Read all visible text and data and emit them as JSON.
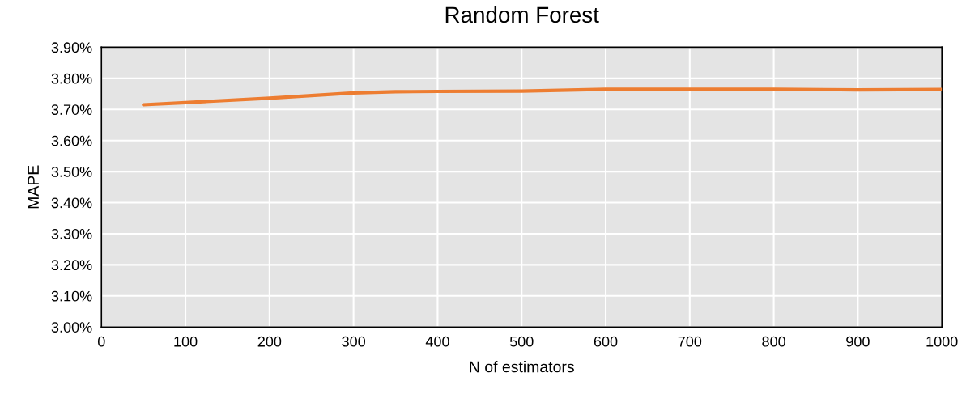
{
  "chart_data": {
    "type": "line",
    "title": "Random Forest",
    "xlabel": "N of estimators",
    "ylabel": "MAPE",
    "x": [
      50,
      100,
      200,
      300,
      350,
      400,
      500,
      600,
      700,
      800,
      900,
      1000
    ],
    "series": [
      {
        "color": "#ed7d31",
        "values": [
          3.715,
          3.722,
          3.736,
          3.753,
          3.757,
          3.758,
          3.759,
          3.765,
          3.765,
          3.765,
          3.763,
          3.764
        ]
      }
    ],
    "xlim": [
      0,
      1000
    ],
    "xticks": [
      0,
      100,
      200,
      300,
      400,
      500,
      600,
      700,
      800,
      900,
      1000
    ],
    "ylim": [
      3.0,
      3.9
    ],
    "yticks": [
      {
        "value": 3.0,
        "label": "3.00%"
      },
      {
        "value": 3.1,
        "label": "3.10%"
      },
      {
        "value": 3.2,
        "label": "3.20%"
      },
      {
        "value": 3.3,
        "label": "3.30%"
      },
      {
        "value": 3.4,
        "label": "3.40%"
      },
      {
        "value": 3.5,
        "label": "3.50%"
      },
      {
        "value": 3.6,
        "label": "3.60%"
      },
      {
        "value": 3.7,
        "label": "3.70%"
      },
      {
        "value": 3.8,
        "label": "3.80%"
      },
      {
        "value": 3.9,
        "label": "3.90%"
      }
    ],
    "grid": true,
    "marker": "none",
    "line_style": "solid"
  }
}
